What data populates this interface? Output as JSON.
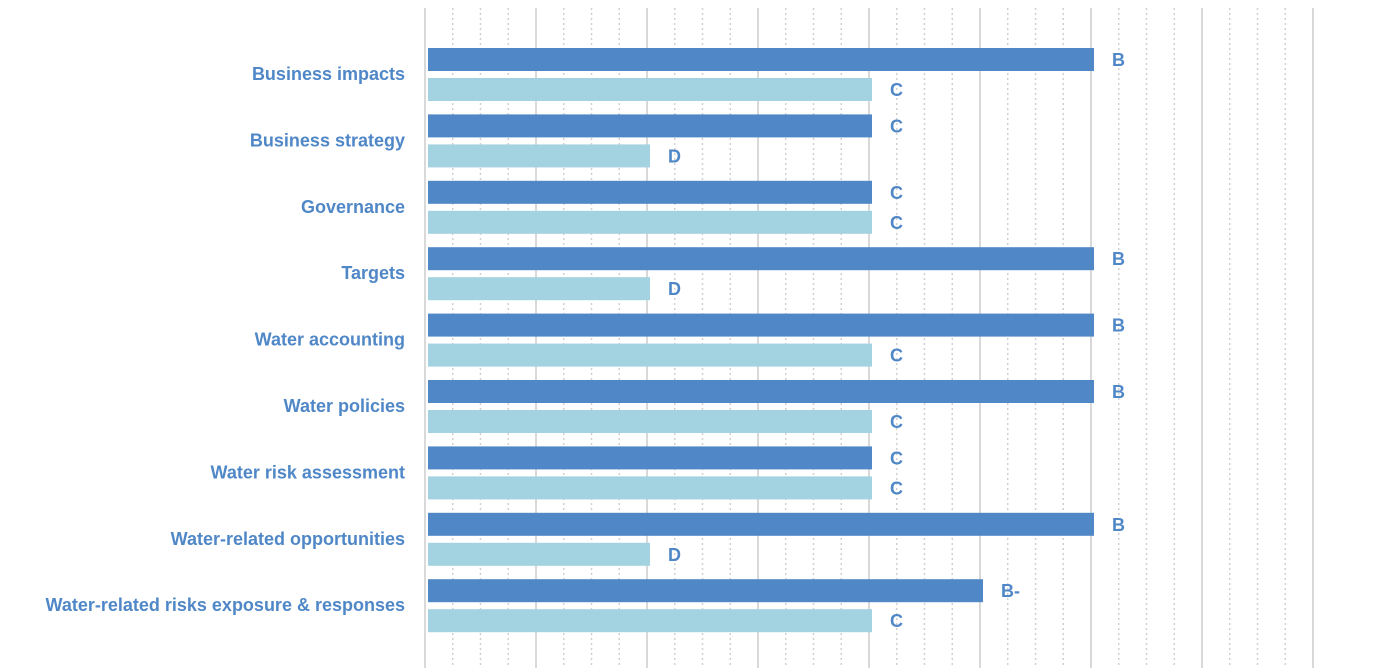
{
  "chart_data": {
    "type": "bar",
    "orientation": "horizontal",
    "categories": [
      "Business impacts",
      "Business strategy",
      "Governance",
      "Targets",
      "Water accounting",
      "Water policies",
      "Water risk assessment",
      "Water-related opportunities",
      "Water-related risks exposure & responses"
    ],
    "grade_scale": [
      "D-",
      "D",
      "C-",
      "C",
      "B-",
      "B",
      "A-",
      "A"
    ],
    "series": [
      {
        "color": "#4f87c7",
        "values": [
          5,
          3,
          3,
          5,
          5,
          5,
          3,
          5,
          4
        ],
        "labels": [
          "B",
          "C",
          "C",
          "B",
          "B",
          "B",
          "C",
          "B",
          "B-"
        ]
      },
      {
        "color": "#a3d2e1",
        "values": [
          3,
          1,
          3,
          1,
          3,
          3,
          3,
          1,
          3
        ],
        "labels": [
          "C",
          "D",
          "C",
          "D",
          "C",
          "C",
          "C",
          "D",
          "C"
        ]
      }
    ],
    "xlim": [
      -1,
      7
    ],
    "grid": true,
    "legend": "none",
    "label_color": "#4f87c7"
  }
}
